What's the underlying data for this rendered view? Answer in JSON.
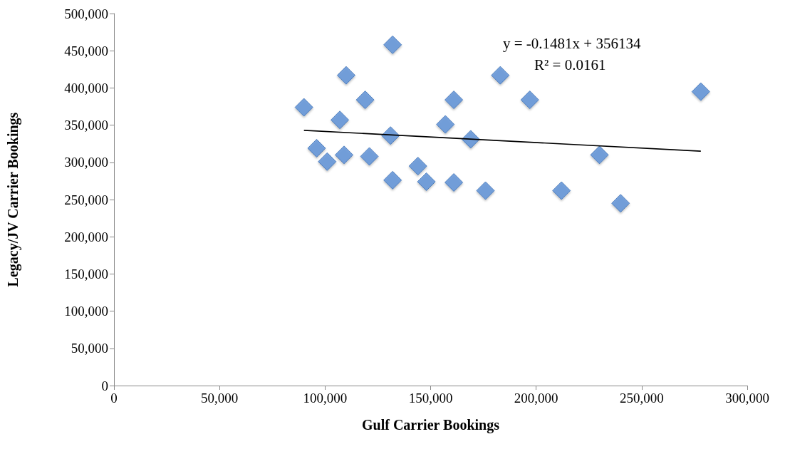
{
  "chart_data": {
    "type": "scatter",
    "xlabel": "Gulf Carrier Bookings",
    "ylabel": "Legacy/JV Carrier Bookings",
    "annotations": [
      "y = -0.1481x + 356134",
      "R² = 0.0161"
    ],
    "series": [
      {
        "color": "#5b8fd6",
        "marker": "diamond",
        "x": [
          90000,
          96000,
          101000,
          107000,
          109000,
          110000,
          119000,
          121000,
          131000,
          132000,
          132000,
          144000,
          148000,
          157000,
          161000,
          161000,
          169000,
          176000,
          183000,
          197000,
          212000,
          230000,
          240000,
          278000
        ],
        "values": [
          374000,
          319000,
          301000,
          357000,
          310000,
          417000,
          384000,
          308000,
          336000,
          458000,
          276000,
          295000,
          274000,
          351000,
          273000,
          384000,
          331000,
          262000,
          417000,
          384000,
          262000,
          310000,
          245000,
          395000
        ]
      },
      {
        "type": "line",
        "color": "#000000",
        "marker": "none",
        "x": [
          90000,
          278000
        ],
        "values": [
          343000,
          315000
        ]
      }
    ],
    "xlim": [
      0,
      300000
    ],
    "xticks": [
      0,
      {
        "value": 50000,
        "label": "50,000"
      },
      {
        "value": 100000,
        "label": "100,000"
      },
      {
        "value": 150000,
        "label": "150,000"
      },
      {
        "value": 200000,
        "label": "200,000"
      },
      {
        "value": 250000,
        "label": "250,000"
      },
      {
        "value": 300000,
        "label": "300,000"
      }
    ],
    "ylim": [
      0,
      500000
    ],
    "yticks": [
      0,
      {
        "value": 50000,
        "label": "50,000"
      },
      {
        "value": 100000,
        "label": "100,000"
      },
      {
        "value": 150000,
        "label": "150,000"
      },
      {
        "value": 200000,
        "label": "200,000"
      },
      {
        "value": 250000,
        "label": "250,000"
      },
      {
        "value": 300000,
        "label": "300,000"
      },
      {
        "value": 350000,
        "label": "350,000"
      },
      {
        "value": 400000,
        "label": "400,000"
      },
      {
        "value": 450000,
        "label": "450,000"
      },
      {
        "value": 500000,
        "label": "500,000"
      }
    ],
    "grid": false
  }
}
